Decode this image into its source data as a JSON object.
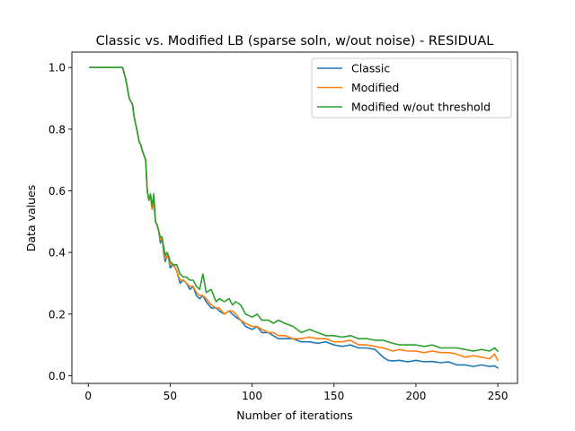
{
  "chart_data": {
    "type": "line",
    "title": "Classic vs. Modified LB (sparse soln, w/out noise) - RESIDUAL",
    "xlabel": "Number of iterations",
    "ylabel": "Data values",
    "xlim": [
      -10,
      262
    ],
    "ylim": [
      -0.025,
      1.05
    ],
    "xticks": [
      0,
      50,
      100,
      150,
      200,
      250
    ],
    "xtick_labels": [
      "0",
      "50",
      "100",
      "150",
      "200",
      "250"
    ],
    "yticks": [
      0.0,
      0.2,
      0.4,
      0.6,
      0.8,
      1.0
    ],
    "ytick_labels": [
      "0.0",
      "0.2",
      "0.4",
      "0.6",
      "0.8",
      "1.0"
    ],
    "grid": false,
    "legend_position": "upper right",
    "series": [
      {
        "name": "Classic",
        "color": "#1f77b4",
        "x": [
          1,
          10,
          21,
          23,
          25,
          27,
          28,
          30,
          31,
          32,
          33,
          35,
          36,
          37,
          38,
          39,
          40,
          41,
          42,
          43,
          44,
          45,
          46,
          47,
          48,
          49,
          50,
          52,
          54,
          56,
          58,
          60,
          62,
          64,
          66,
          68,
          70,
          72,
          75,
          78,
          80,
          83,
          86,
          88,
          90,
          93,
          96,
          100,
          103,
          106,
          110,
          113,
          116,
          120,
          125,
          130,
          135,
          140,
          145,
          150,
          155,
          160,
          165,
          170,
          175,
          180,
          183,
          186,
          190,
          195,
          200,
          205,
          210,
          215,
          220,
          225,
          230,
          235,
          240,
          245,
          248,
          250
        ],
        "y": [
          1.0,
          1.0,
          1.0,
          0.96,
          0.9,
          0.88,
          0.84,
          0.79,
          0.76,
          0.75,
          0.73,
          0.7,
          0.6,
          0.57,
          0.58,
          0.54,
          0.57,
          0.5,
          0.49,
          0.47,
          0.43,
          0.45,
          0.4,
          0.37,
          0.39,
          0.38,
          0.35,
          0.36,
          0.34,
          0.3,
          0.31,
          0.3,
          0.28,
          0.29,
          0.26,
          0.25,
          0.26,
          0.24,
          0.22,
          0.22,
          0.21,
          0.2,
          0.21,
          0.2,
          0.19,
          0.18,
          0.16,
          0.15,
          0.16,
          0.14,
          0.14,
          0.13,
          0.12,
          0.12,
          0.12,
          0.11,
          0.11,
          0.105,
          0.11,
          0.1,
          0.095,
          0.1,
          0.09,
          0.09,
          0.085,
          0.06,
          0.05,
          0.048,
          0.05,
          0.045,
          0.05,
          0.045,
          0.046,
          0.042,
          0.045,
          0.035,
          0.035,
          0.03,
          0.035,
          0.03,
          0.032,
          0.025
        ]
      },
      {
        "name": "Modified",
        "color": "#ff7f0e",
        "x": [
          1,
          10,
          21,
          23,
          25,
          27,
          28,
          30,
          31,
          32,
          33,
          35,
          36,
          37,
          38,
          39,
          40,
          41,
          42,
          43,
          44,
          45,
          46,
          47,
          48,
          49,
          50,
          52,
          54,
          56,
          58,
          60,
          62,
          64,
          66,
          68,
          70,
          72,
          75,
          78,
          80,
          83,
          86,
          88,
          90,
          93,
          96,
          100,
          103,
          106,
          110,
          113,
          116,
          120,
          125,
          130,
          135,
          140,
          145,
          150,
          155,
          160,
          165,
          170,
          175,
          180,
          183,
          186,
          190,
          195,
          200,
          205,
          210,
          215,
          220,
          225,
          230,
          235,
          240,
          245,
          248,
          250
        ],
        "y": [
          1.0,
          1.0,
          1.0,
          0.96,
          0.9,
          0.88,
          0.84,
          0.79,
          0.76,
          0.75,
          0.73,
          0.7,
          0.6,
          0.57,
          0.58,
          0.54,
          0.57,
          0.5,
          0.49,
          0.47,
          0.44,
          0.45,
          0.41,
          0.38,
          0.39,
          0.38,
          0.36,
          0.36,
          0.34,
          0.31,
          0.31,
          0.3,
          0.29,
          0.29,
          0.27,
          0.26,
          0.26,
          0.25,
          0.23,
          0.22,
          0.22,
          0.2,
          0.21,
          0.21,
          0.2,
          0.18,
          0.17,
          0.16,
          0.16,
          0.15,
          0.14,
          0.14,
          0.13,
          0.13,
          0.12,
          0.12,
          0.125,
          0.12,
          0.12,
          0.11,
          0.11,
          0.115,
          0.1,
          0.1,
          0.095,
          0.09,
          0.085,
          0.08,
          0.085,
          0.08,
          0.08,
          0.075,
          0.08,
          0.075,
          0.075,
          0.07,
          0.06,
          0.065,
          0.06,
          0.055,
          0.07,
          0.05
        ]
      },
      {
        "name": "Modified w/out threshold",
        "color": "#2ca02c",
        "x": [
          1,
          10,
          21,
          23,
          25,
          27,
          28,
          30,
          31,
          32,
          33,
          35,
          36,
          37,
          38,
          39,
          40,
          41,
          42,
          43,
          44,
          45,
          46,
          47,
          48,
          49,
          50,
          52,
          54,
          56,
          58,
          60,
          62,
          64,
          66,
          68,
          70,
          72,
          75,
          78,
          80,
          83,
          86,
          88,
          90,
          93,
          96,
          100,
          103,
          106,
          110,
          113,
          116,
          120,
          125,
          130,
          135,
          140,
          145,
          150,
          155,
          160,
          165,
          170,
          175,
          180,
          183,
          186,
          190,
          195,
          200,
          205,
          210,
          215,
          220,
          225,
          230,
          235,
          240,
          245,
          248,
          250
        ],
        "y": [
          1.0,
          1.0,
          1.0,
          0.96,
          0.9,
          0.88,
          0.84,
          0.79,
          0.76,
          0.75,
          0.73,
          0.7,
          0.6,
          0.57,
          0.59,
          0.55,
          0.59,
          0.5,
          0.49,
          0.47,
          0.45,
          0.45,
          0.42,
          0.39,
          0.4,
          0.39,
          0.37,
          0.36,
          0.36,
          0.33,
          0.32,
          0.32,
          0.31,
          0.31,
          0.29,
          0.28,
          0.33,
          0.27,
          0.28,
          0.24,
          0.25,
          0.24,
          0.25,
          0.23,
          0.24,
          0.23,
          0.2,
          0.19,
          0.2,
          0.18,
          0.18,
          0.17,
          0.18,
          0.17,
          0.16,
          0.14,
          0.15,
          0.14,
          0.13,
          0.13,
          0.125,
          0.13,
          0.12,
          0.12,
          0.115,
          0.115,
          0.11,
          0.105,
          0.1,
          0.1,
          0.1,
          0.095,
          0.1,
          0.09,
          0.09,
          0.09,
          0.085,
          0.08,
          0.085,
          0.08,
          0.09,
          0.08
        ]
      }
    ]
  }
}
